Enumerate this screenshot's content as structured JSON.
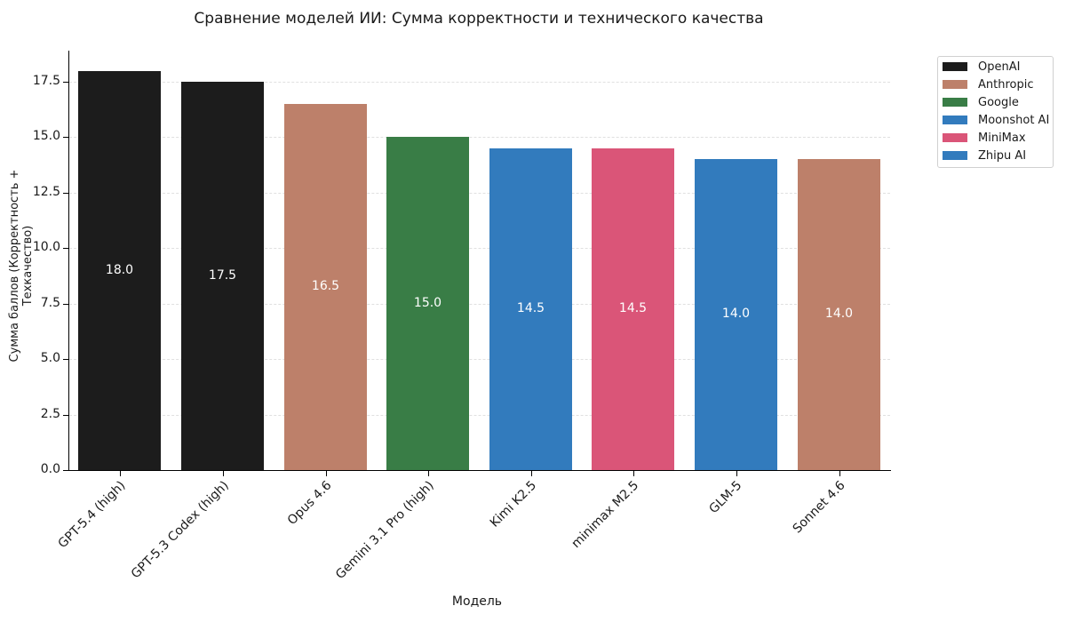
{
  "title": "Сравнение моделей ИИ: Сумма корректности и технического качества",
  "xlabel": "Модель",
  "ylabel": "Сумма баллов (Корректность + Техкачество)",
  "yticks": [
    "0.0",
    "2.5",
    "5.0",
    "7.5",
    "10.0",
    "12.5",
    "15.0",
    "17.5"
  ],
  "legend": [
    {
      "label": "OpenAI",
      "color": "#1c1c1c"
    },
    {
      "label": "Anthropic",
      "color": "#bd806a"
    },
    {
      "label": "Google",
      "color": "#397d46"
    },
    {
      "label": "Moonshot AI",
      "color": "#327bbd"
    },
    {
      "label": "MiniMax",
      "color": "#da5578"
    },
    {
      "label": "Zhipu AI",
      "color": "#327bbd"
    }
  ],
  "bars": [
    {
      "model": "GPT-5.4 (high)",
      "value_label": "18.0"
    },
    {
      "model": "GPT-5.3 Codex (high)",
      "value_label": "17.5"
    },
    {
      "model": "Opus 4.6",
      "value_label": "16.5"
    },
    {
      "model": "Gemini 3.1 Pro (high)",
      "value_label": "15.0"
    },
    {
      "model": "Kimi K2.5",
      "value_label": "14.5"
    },
    {
      "model": "minimax M2.5",
      "value_label": "14.5"
    },
    {
      "model": "GLM-5",
      "value_label": "14.0"
    },
    {
      "model": "Sonnet 4.6",
      "value_label": "14.0"
    }
  ],
  "chart_data": {
    "type": "bar",
    "title": "Сравнение моделей ИИ: Сумма корректности и технического качества",
    "xlabel": "Модель",
    "ylabel": "Сумма баллов (Корректность + Техкачество)",
    "categories": [
      "GPT-5.4 (high)",
      "GPT-5.3 Codex (high)",
      "Opus 4.6",
      "Gemini 3.1 Pro (high)",
      "Kimi K2.5",
      "minimax M2.5",
      "GLM-5",
      "Sonnet 4.6"
    ],
    "values": [
      18.0,
      17.5,
      16.5,
      15.0,
      14.5,
      14.5,
      14.0,
      14.0
    ],
    "companies": [
      "OpenAI",
      "OpenAI",
      "Anthropic",
      "Google",
      "Moonshot AI",
      "MiniMax",
      "Zhipu AI",
      "Anthropic"
    ],
    "colors": [
      "#1c1c1c",
      "#1c1c1c",
      "#bd806a",
      "#397d46",
      "#327bbd",
      "#da5578",
      "#327bbd",
      "#bd806a"
    ],
    "ylim": [
      0,
      18.9
    ],
    "yticks": [
      0,
      2.5,
      5.0,
      7.5,
      10.0,
      12.5,
      15.0,
      17.5
    ],
    "grid": "y dashed",
    "legend": [
      "OpenAI",
      "Anthropic",
      "Google",
      "Moonshot AI",
      "MiniMax",
      "Zhipu AI"
    ],
    "legend_position": "upper right outside"
  }
}
